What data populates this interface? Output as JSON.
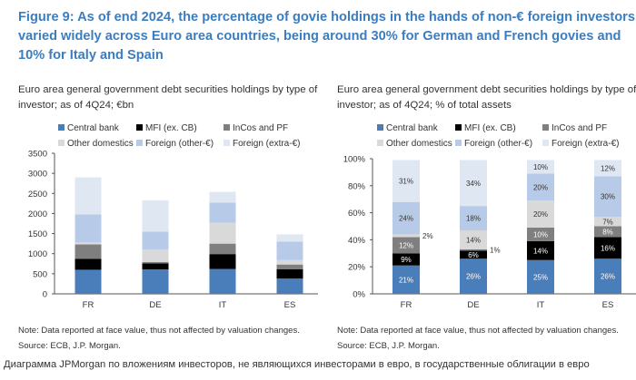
{
  "title": "Figure 9: As of end 2024, the percentage of govie holdings in the hands of non-€ foreign investors varied widely across Euro area countries, being around 30% for German and French govies and 10% for Italy and Spain",
  "caption": "Диаграмма JPMorgan по вложениям инвесторов, не являющихся инвесторами в евро, в государственные облигации в евро",
  "colors": {
    "Central bank": "#4a7ebb",
    "MFI (ex. CB)": "#000000",
    "InCos and PF": "#7f7f7f",
    "Other domestics": "#d9d9d9",
    "Foreign (other-€)": "#b7cbe8",
    "Foreign (extra-€)": "#dfe7f3"
  },
  "chart_data": [
    {
      "type": "bar",
      "stacked": true,
      "subtitle": "Euro area general government debt securities holdings by type of investor; as of 4Q24; €bn",
      "categories": [
        "FR",
        "DE",
        "IT",
        "ES"
      ],
      "series": [
        {
          "name": "Central bank",
          "values": [
            600,
            610,
            620,
            380
          ]
        },
        {
          "name": "MFI (ex. CB)",
          "values": [
            270,
            150,
            370,
            230
          ]
        },
        {
          "name": "InCos and PF",
          "values": [
            360,
            30,
            260,
            120
          ]
        },
        {
          "name": "Other domestics",
          "values": [
            50,
            310,
            520,
            110
          ]
        },
        {
          "name": "Foreign (other-€)",
          "values": [
            700,
            450,
            500,
            460
          ]
        },
        {
          "name": "Foreign (extra-€)",
          "values": [
            920,
            780,
            270,
            180
          ]
        }
      ],
      "ylim": [
        0,
        3500
      ],
      "yticks": [
        "0",
        "500",
        "1000",
        "1500",
        "2000",
        "2500",
        "3000",
        "3500"
      ],
      "note": "Note: Data reported at face value, thus not affected by valuation changes.",
      "source": "Source: ECB, J.P. Morgan."
    },
    {
      "type": "bar",
      "stacked": true,
      "subtitle": "Euro area general government debt securities holdings by type of investor; as of 4Q24; % of total assets",
      "categories": [
        "FR",
        "DE",
        "IT",
        "ES"
      ],
      "series": [
        {
          "name": "Central bank",
          "values": [
            21,
            26,
            25,
            26
          ]
        },
        {
          "name": "MFI (ex. CB)",
          "values": [
            9,
            6,
            14,
            16
          ]
        },
        {
          "name": "InCos and PF",
          "values": [
            12,
            1,
            10,
            8
          ]
        },
        {
          "name": "Other domestics",
          "values": [
            2,
            14,
            20,
            7
          ]
        },
        {
          "name": "Foreign (other-€)",
          "values": [
            24,
            18,
            20,
            30
          ]
        },
        {
          "name": "Foreign (extra-€)",
          "values": [
            31,
            34,
            10,
            12
          ]
        }
      ],
      "ylim": [
        0,
        100
      ],
      "yticks": [
        "0%",
        "20%",
        "40%",
        "60%",
        "80%",
        "100%"
      ],
      "data_labels": true,
      "note": "Note: Data reported at face value, thus not affected by valuation changes.",
      "source": "Source: ECB, J.P. Morgan."
    }
  ]
}
